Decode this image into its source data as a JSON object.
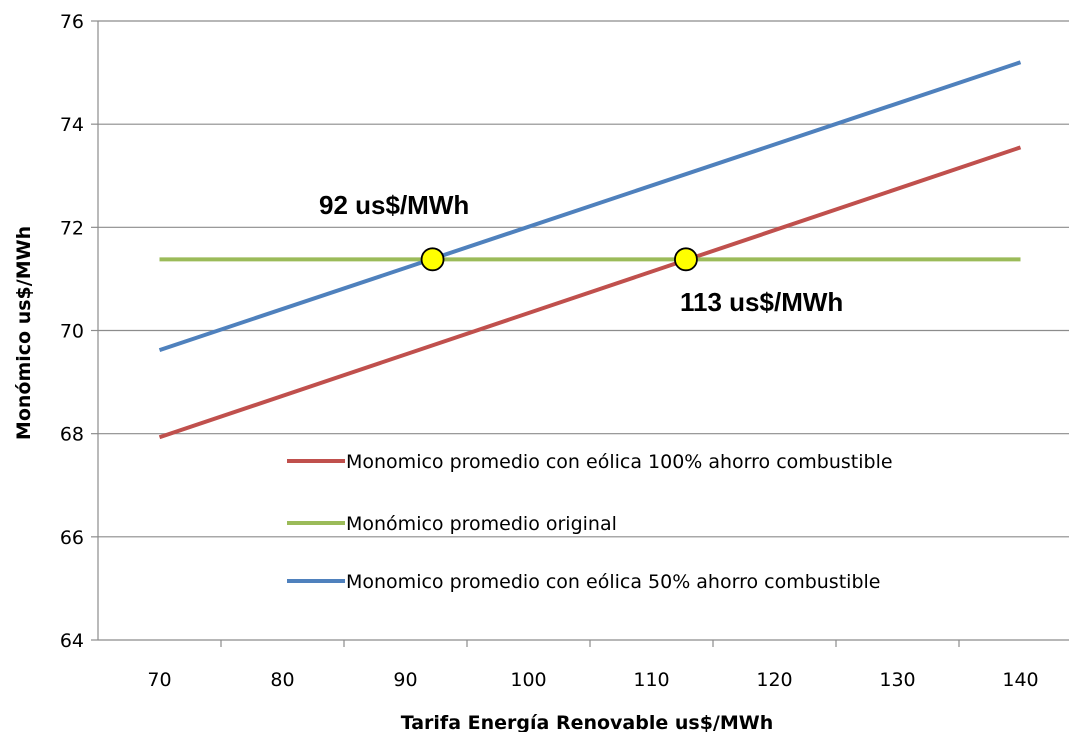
{
  "chart_data": {
    "type": "line",
    "title": "",
    "xlabel": "Tarifa Energía Renovable us$/MWh",
    "ylabel": "Monómico us$/MWh",
    "x": [
      70,
      140
    ],
    "xlim": [
      65,
      145
    ],
    "ylim": [
      64,
      76
    ],
    "xticks": [
      "70",
      "80",
      "90",
      "100",
      "110",
      "120",
      "130",
      "140"
    ],
    "yticks": [
      "64",
      "66",
      "68",
      "70",
      "72",
      "74",
      "76"
    ],
    "grid": true,
    "legend_position": "bottom-right",
    "series": [
      {
        "name": "Monomico promedio con eólica 100% ahorro combustible",
        "color": "#c0504d",
        "values": [
          67.93,
          73.55
        ]
      },
      {
        "name": "Monómico promedio original",
        "color": "#9bbb59",
        "values": [
          71.38,
          71.38
        ]
      },
      {
        "name": "Monomico promedio con eólica 50% ahorro combustible",
        "color": "#4f81bd",
        "values": [
          69.62,
          75.2
        ]
      }
    ],
    "annotations": [
      {
        "text": "92 us$/MWh",
        "x": 92.2,
        "y": 71.38
      },
      {
        "text": "113 us$/MWh",
        "x": 112.8,
        "y": 71.38
      }
    ],
    "marker_color": "#ffff00"
  }
}
